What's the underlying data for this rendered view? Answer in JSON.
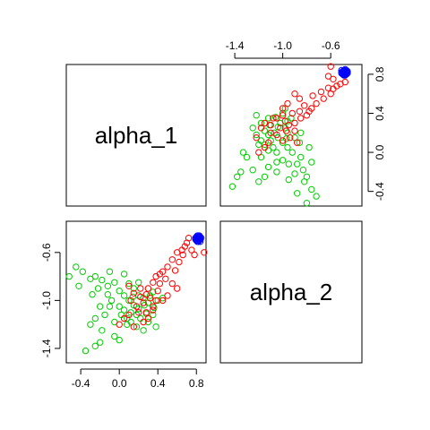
{
  "chart_data": {
    "type": "scatter",
    "title": "",
    "variables": [
      "alpha_1",
      "alpha_2"
    ],
    "ranges": {
      "alpha_1": [
        -0.55,
        0.9
      ],
      "alpha_2": [
        -1.52,
        -0.34
      ]
    },
    "ticks": {
      "alpha_1": [
        "-0.4",
        "0.0",
        "0.4",
        "0.8"
      ],
      "alpha_2": [
        "-1.4",
        "-1.0",
        "-0.6"
      ]
    },
    "grid": false,
    "legend": "none",
    "series": [
      {
        "color": "#0000ff",
        "points": [
          [
            0.8,
            -0.47
          ],
          [
            0.82,
            -0.48
          ],
          [
            0.81,
            -0.5
          ],
          [
            0.83,
            -0.46
          ],
          [
            0.84,
            -0.49
          ],
          [
            0.79,
            -0.48
          ],
          [
            0.82,
            -0.51
          ],
          [
            0.8,
            -0.5
          ],
          [
            0.83,
            -0.47
          ],
          [
            0.81,
            -0.46
          ],
          [
            0.84,
            -0.51
          ],
          [
            0.82,
            -0.49
          ],
          [
            0.8,
            -0.49
          ],
          [
            0.83,
            -0.5
          ],
          [
            0.81,
            -0.48
          ],
          [
            0.85,
            -0.48
          ],
          [
            0.82,
            -0.47
          ],
          [
            0.79,
            -0.49
          ],
          [
            0.84,
            -0.47
          ],
          [
            0.81,
            -0.51
          ]
        ]
      },
      {
        "color": "#ff0000",
        "points": [
          [
            0.88,
            -0.6
          ],
          [
            0.72,
            -0.48
          ],
          [
            0.68,
            -0.55
          ],
          [
            0.7,
            -0.52
          ],
          [
            0.6,
            -0.6
          ],
          [
            0.65,
            -0.58
          ],
          [
            0.75,
            -0.58
          ],
          [
            0.78,
            -0.62
          ],
          [
            0.66,
            -0.62
          ],
          [
            0.55,
            -0.66
          ],
          [
            0.62,
            -0.68
          ],
          [
            0.5,
            -0.72
          ],
          [
            0.45,
            -0.76
          ],
          [
            0.58,
            -0.75
          ],
          [
            0.42,
            -0.78
          ],
          [
            0.38,
            -0.8
          ],
          [
            0.48,
            -0.82
          ],
          [
            0.35,
            -0.85
          ],
          [
            0.42,
            -0.86
          ],
          [
            0.3,
            -0.9
          ],
          [
            0.22,
            -0.9
          ],
          [
            0.15,
            -0.94
          ],
          [
            0.28,
            -0.95
          ],
          [
            0.32,
            -0.98
          ],
          [
            0.38,
            -1.0
          ],
          [
            0.45,
            -1.0
          ],
          [
            0.5,
            -0.96
          ],
          [
            0.25,
            -1.02
          ],
          [
            0.18,
            -1.05
          ],
          [
            0.12,
            -1.0
          ],
          [
            0.2,
            -1.1
          ],
          [
            0.28,
            -1.1
          ],
          [
            0.35,
            -1.08
          ],
          [
            0.1,
            -1.12
          ],
          [
            0.05,
            -1.15
          ],
          [
            0.0,
            -1.2
          ],
          [
            0.15,
            -1.22
          ],
          [
            0.25,
            -1.18
          ],
          [
            0.3,
            -1.15
          ],
          [
            0.4,
            -0.92
          ],
          [
            0.55,
            -0.86
          ],
          [
            0.6,
            -0.9
          ],
          [
            0.22,
            -0.97
          ],
          [
            0.1,
            -0.88
          ],
          [
            0.35,
            -1.05
          ]
        ]
      },
      {
        "color": "#00cd00",
        "points": [
          [
            -0.45,
            -0.72
          ],
          [
            -0.38,
            -0.76
          ],
          [
            -0.52,
            -0.8
          ],
          [
            -0.3,
            -0.82
          ],
          [
            -0.25,
            -0.8
          ],
          [
            -0.1,
            -0.76
          ],
          [
            0.05,
            -0.78
          ],
          [
            -0.18,
            -0.83
          ],
          [
            -0.05,
            -0.85
          ],
          [
            0.1,
            -0.86
          ],
          [
            -0.22,
            -0.9
          ],
          [
            -0.12,
            -0.88
          ],
          [
            0.0,
            -0.92
          ],
          [
            0.15,
            -0.9
          ],
          [
            -0.28,
            -0.95
          ],
          [
            0.05,
            -0.96
          ],
          [
            0.2,
            -0.96
          ],
          [
            0.35,
            -0.93
          ],
          [
            -0.08,
            -1.0
          ],
          [
            0.1,
            -1.0
          ],
          [
            0.25,
            -0.98
          ],
          [
            0.4,
            -1.0
          ],
          [
            -0.2,
            -1.05
          ],
          [
            0.0,
            -1.05
          ],
          [
            0.15,
            -1.04
          ],
          [
            0.3,
            -1.02
          ],
          [
            0.05,
            -1.08
          ],
          [
            0.2,
            -1.07
          ],
          [
            0.12,
            -1.1
          ],
          [
            0.28,
            -1.11
          ],
          [
            -0.15,
            -1.12
          ],
          [
            0.02,
            -1.12
          ],
          [
            0.18,
            -1.12
          ],
          [
            0.35,
            -1.12
          ],
          [
            -0.25,
            -1.15
          ],
          [
            0.08,
            -1.15
          ],
          [
            0.22,
            -1.15
          ],
          [
            -0.05,
            -1.18
          ],
          [
            0.12,
            -1.18
          ],
          [
            0.3,
            -1.18
          ],
          [
            -0.3,
            -1.2
          ],
          [
            0.18,
            -1.22
          ],
          [
            0.38,
            -1.22
          ],
          [
            -0.18,
            -1.25
          ],
          [
            0.25,
            -1.25
          ],
          [
            -0.05,
            -1.3
          ],
          [
            0.0,
            -1.33
          ],
          [
            -0.2,
            -1.35
          ],
          [
            -0.25,
            -1.38
          ],
          [
            -0.35,
            -1.42
          ],
          [
            -0.1,
            -1.05
          ],
          [
            0.32,
            -0.96
          ],
          [
            0.45,
            -0.98
          ],
          [
            -0.42,
            -0.88
          ],
          [
            0.2,
            -0.85
          ],
          [
            0.14,
            -0.97
          ],
          [
            0.26,
            -1.04
          ],
          [
            0.08,
            -1.2
          ],
          [
            0.36,
            -1.06
          ],
          [
            -0.12,
            -0.95
          ]
        ]
      }
    ],
    "panels": [
      {
        "position": "top-left",
        "kind": "label",
        "text": "alpha_1"
      },
      {
        "position": "top-right",
        "kind": "scatter",
        "x": "alpha_2",
        "y": "alpha_1"
      },
      {
        "position": "bottom-left",
        "kind": "scatter",
        "x": "alpha_1",
        "y": "alpha_2"
      },
      {
        "position": "bottom-right",
        "kind": "label",
        "text": "alpha_2"
      }
    ]
  }
}
